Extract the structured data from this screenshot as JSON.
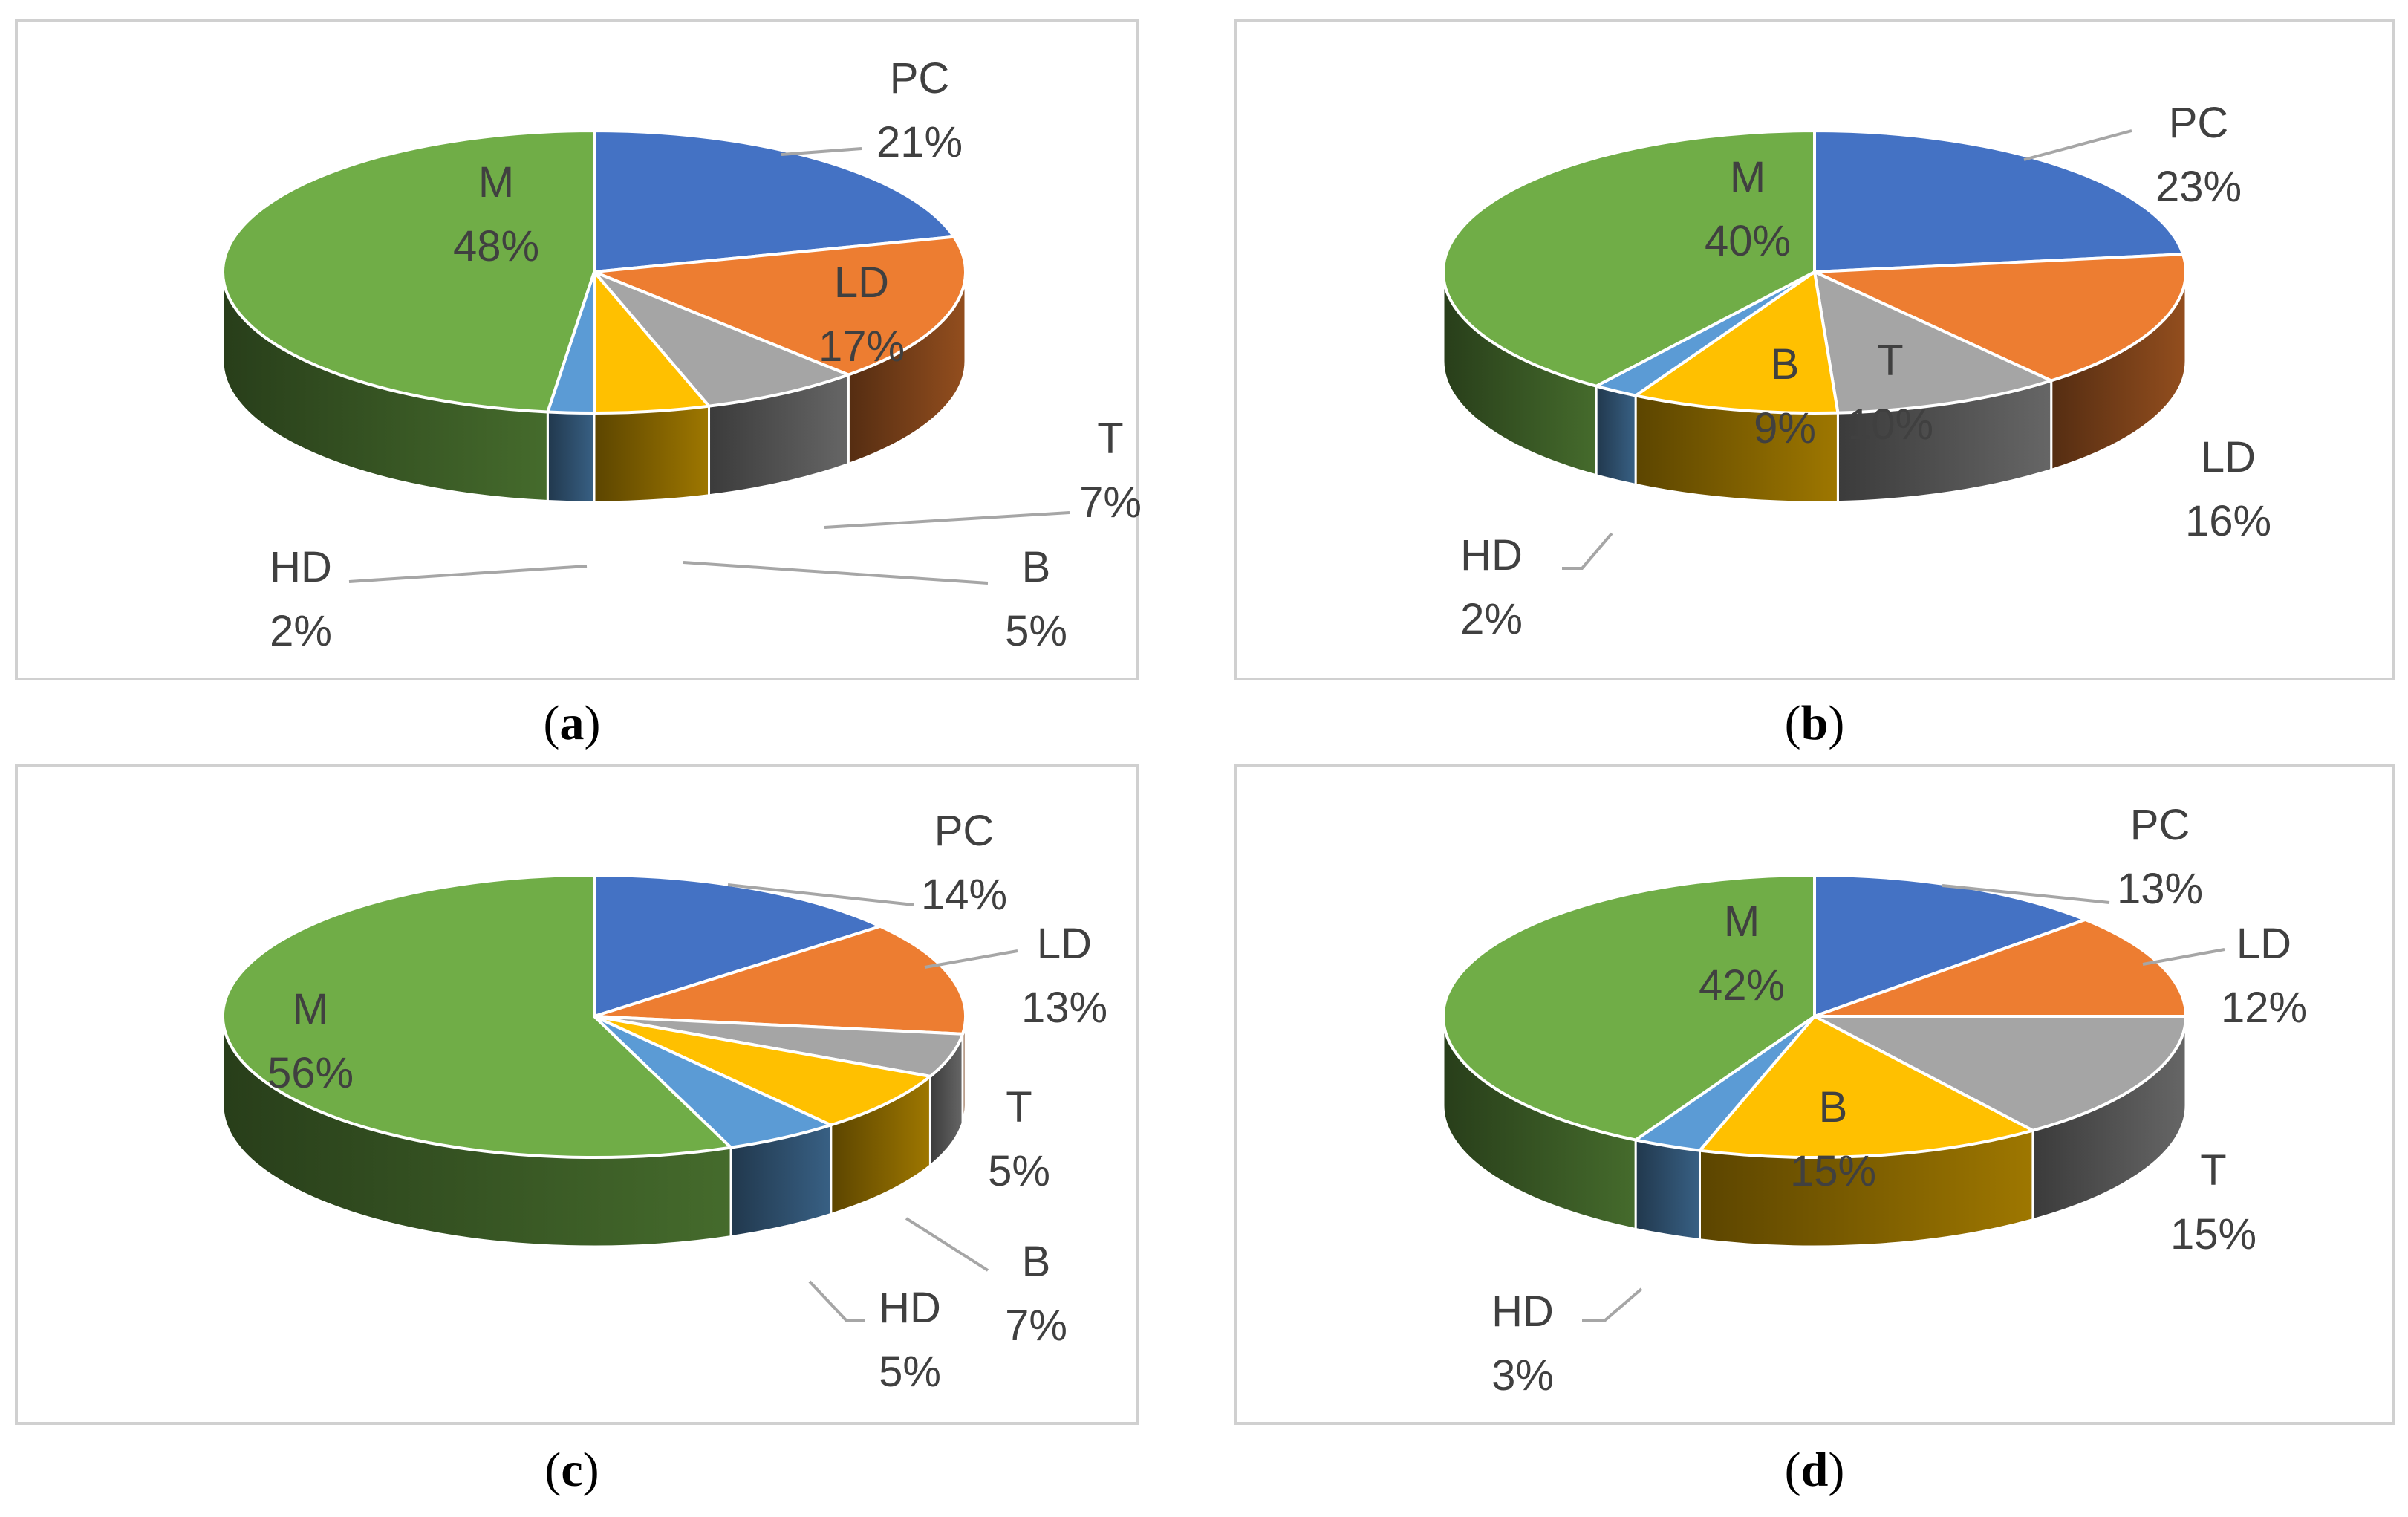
{
  "chart_data": [
    {
      "type": "pie",
      "caption": "a",
      "title": "",
      "categories": [
        "PC",
        "LD",
        "T",
        "B",
        "HD",
        "M"
      ],
      "labels": [
        "21%",
        "17%",
        "7%",
        "5%",
        "2%",
        "48%"
      ],
      "values": [
        21,
        17,
        7,
        5,
        2,
        48
      ],
      "colors": [
        "#4472c4",
        "#ed7d31",
        "#a5a5a5",
        "#ffc000",
        "#5b9bd5",
        "#70ad47"
      ]
    },
    {
      "type": "pie",
      "caption": "b",
      "title": "",
      "categories": [
        "PC",
        "LD",
        "T",
        "B",
        "HD",
        "M"
      ],
      "labels": [
        "23%",
        "16%",
        "10%",
        "9%",
        "2%",
        "40%"
      ],
      "values": [
        23,
        16,
        10,
        9,
        2,
        40
      ],
      "colors": [
        "#4472c4",
        "#ed7d31",
        "#a5a5a5",
        "#ffc000",
        "#5b9bd5",
        "#70ad47"
      ]
    },
    {
      "type": "pie",
      "caption": "c",
      "title": "",
      "categories": [
        "PC",
        "LD",
        "T",
        "B",
        "HD",
        "M"
      ],
      "labels": [
        "14%",
        "13%",
        "5%",
        "7%",
        "5%",
        "56%"
      ],
      "values": [
        14,
        13,
        5,
        7,
        5,
        56
      ],
      "colors": [
        "#4472c4",
        "#ed7d31",
        "#a5a5a5",
        "#ffc000",
        "#5b9bd5",
        "#70ad47"
      ]
    },
    {
      "type": "pie",
      "caption": "d",
      "title": "",
      "categories": [
        "PC",
        "LD",
        "T",
        "B",
        "HD",
        "M"
      ],
      "labels": [
        "13%",
        "12%",
        "15%",
        "15%",
        "3%",
        "42%"
      ],
      "values": [
        13,
        12,
        15,
        15,
        3,
        42
      ],
      "colors": [
        "#4472c4",
        "#ed7d31",
        "#a5a5a5",
        "#ffc000",
        "#5b9bd5",
        "#70ad47"
      ]
    }
  ]
}
